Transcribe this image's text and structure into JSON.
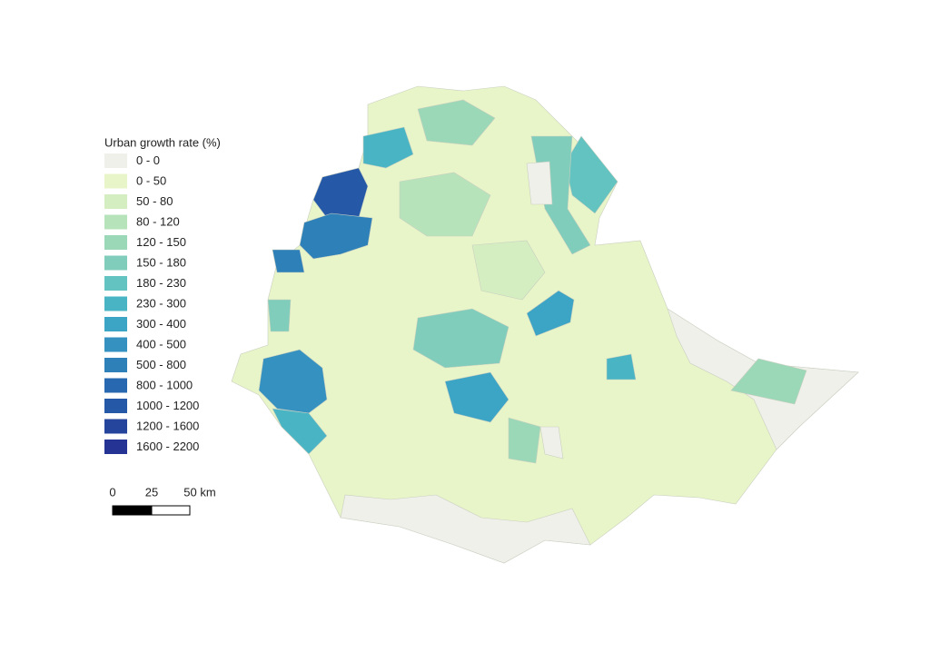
{
  "legend": {
    "title": "Urban growth rate (%)",
    "items": [
      {
        "label": "0 - 0",
        "color": "#f0f0eb"
      },
      {
        "label": "0 - 50",
        "color": "#e8f5c8"
      },
      {
        "label": "50 - 80",
        "color": "#d4eec1"
      },
      {
        "label": "80 - 120",
        "color": "#b7e3bb"
      },
      {
        "label": "120 - 150",
        "color": "#9bd8b7"
      },
      {
        "label": "150 - 180",
        "color": "#80cdbb"
      },
      {
        "label": "180 - 230",
        "color": "#63c3c0"
      },
      {
        "label": "230 - 300",
        "color": "#49b5c4"
      },
      {
        "label": "300 - 400",
        "color": "#3ca4c4"
      },
      {
        "label": "400 - 500",
        "color": "#3592c0"
      },
      {
        "label": "500 - 800",
        "color": "#2d80b8"
      },
      {
        "label": "800 - 1000",
        "color": "#2868b0"
      },
      {
        "label": "1000 - 1200",
        "color": "#2559a8"
      },
      {
        "label": "1200 - 1600",
        "color": "#25449b"
      },
      {
        "label": "1600 - 2200",
        "color": "#253494"
      }
    ]
  },
  "scale_bar": {
    "labels": [
      "0",
      "25",
      "50 km"
    ]
  }
}
